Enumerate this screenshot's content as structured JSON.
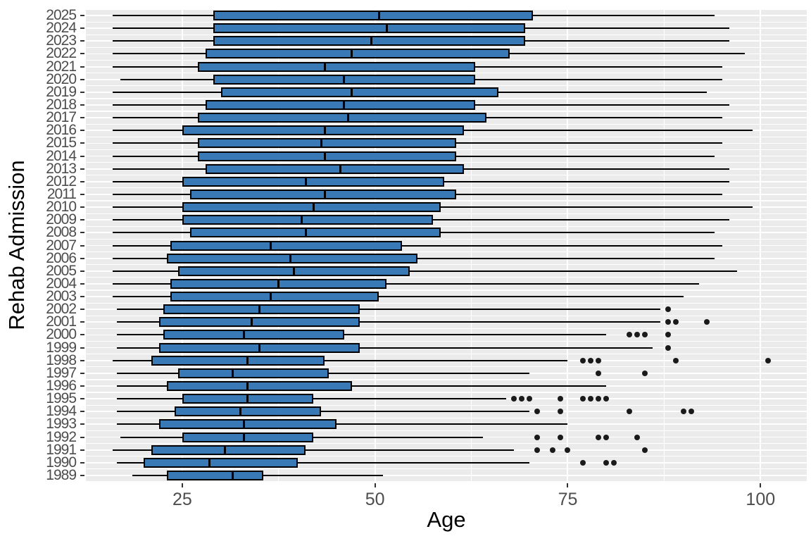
{
  "figure": {
    "x_axis": {
      "label": "Age",
      "tick_labels": [
        "25",
        "50",
        "75",
        "100"
      ]
    },
    "y_axis": {
      "label": "Rehab Admission"
    },
    "colors": {
      "box_fill": "#3879B6",
      "box_stroke": "#000000",
      "panel_background": "#EBEBEB",
      "gridline": "#FFFFFF",
      "tick_text": "#4D4D4D",
      "title_text": "#000000",
      "outlier": "#1A1A1A"
    }
  },
  "chart_data": {
    "type": "boxplot",
    "orientation": "horizontal",
    "title": "",
    "xlabel": "Age",
    "ylabel": "Rehab Admission",
    "xlim": [
      12.5,
      106
    ],
    "x_ticks": [
      25,
      50,
      75,
      100
    ],
    "x_minor_ticks": [
      37.5,
      62.5,
      87.5
    ],
    "grid": true,
    "categories": [
      2025,
      2024,
      2023,
      2022,
      2021,
      2020,
      2019,
      2018,
      2017,
      2016,
      2015,
      2014,
      2013,
      2012,
      2011,
      2010,
      2009,
      2008,
      2007,
      2006,
      2005,
      2004,
      2003,
      2002,
      2001,
      2000,
      1999,
      1998,
      1997,
      1996,
      1995,
      1994,
      1993,
      1992,
      1991,
      1990,
      1989
    ],
    "series": [
      {
        "year": 2025,
        "min": 16,
        "q1": 29,
        "median": 50.5,
        "q3": 70.5,
        "max": 94,
        "outliers": []
      },
      {
        "year": 2024,
        "min": 16,
        "q1": 29,
        "median": 51.5,
        "q3": 69.5,
        "max": 96,
        "outliers": []
      },
      {
        "year": 2023,
        "min": 16,
        "q1": 29,
        "median": 49.5,
        "q3": 69.5,
        "max": 96,
        "outliers": []
      },
      {
        "year": 2022,
        "min": 16,
        "q1": 28,
        "median": 47,
        "q3": 67.5,
        "max": 98,
        "outliers": []
      },
      {
        "year": 2021,
        "min": 16,
        "q1": 27,
        "median": 43.5,
        "q3": 63,
        "max": 95,
        "outliers": []
      },
      {
        "year": 2020,
        "min": 17,
        "q1": 29,
        "median": 46,
        "q3": 63,
        "max": 95,
        "outliers": []
      },
      {
        "year": 2019,
        "min": 16,
        "q1": 30,
        "median": 47,
        "q3": 66,
        "max": 93,
        "outliers": []
      },
      {
        "year": 2018,
        "min": 16,
        "q1": 28,
        "median": 46,
        "q3": 63,
        "max": 96,
        "outliers": []
      },
      {
        "year": 2017,
        "min": 16,
        "q1": 27,
        "median": 46.5,
        "q3": 64.5,
        "max": 95,
        "outliers": []
      },
      {
        "year": 2016,
        "min": 16,
        "q1": 25,
        "median": 43.5,
        "q3": 61.5,
        "max": 99,
        "outliers": []
      },
      {
        "year": 2015,
        "min": 16,
        "q1": 27,
        "median": 43,
        "q3": 60.5,
        "max": 95,
        "outliers": []
      },
      {
        "year": 2014,
        "min": 16,
        "q1": 27,
        "median": 43.5,
        "q3": 60.5,
        "max": 94,
        "outliers": []
      },
      {
        "year": 2013,
        "min": 16,
        "q1": 28,
        "median": 45.5,
        "q3": 61.5,
        "max": 96,
        "outliers": []
      },
      {
        "year": 2012,
        "min": 16,
        "q1": 25,
        "median": 41,
        "q3": 59,
        "max": 96,
        "outliers": []
      },
      {
        "year": 2011,
        "min": 16,
        "q1": 26,
        "median": 43.5,
        "q3": 60.5,
        "max": 95,
        "outliers": []
      },
      {
        "year": 2010,
        "min": 16,
        "q1": 25,
        "median": 42,
        "q3": 58.5,
        "max": 99,
        "outliers": []
      },
      {
        "year": 2009,
        "min": 16,
        "q1": 25,
        "median": 40.5,
        "q3": 57.5,
        "max": 96,
        "outliers": []
      },
      {
        "year": 2008,
        "min": 16,
        "q1": 26,
        "median": 41,
        "q3": 58.5,
        "max": 94,
        "outliers": []
      },
      {
        "year": 2007,
        "min": 16,
        "q1": 23.5,
        "median": 36.5,
        "q3": 53.5,
        "max": 95,
        "outliers": []
      },
      {
        "year": 2006,
        "min": 16,
        "q1": 23,
        "median": 39,
        "q3": 55.5,
        "max": 94,
        "outliers": []
      },
      {
        "year": 2005,
        "min": 16,
        "q1": 24.5,
        "median": 39.5,
        "q3": 54.5,
        "max": 97,
        "outliers": []
      },
      {
        "year": 2004,
        "min": 16,
        "q1": 23.5,
        "median": 37.5,
        "q3": 51.5,
        "max": 92,
        "outliers": []
      },
      {
        "year": 2003,
        "min": 16,
        "q1": 23.5,
        "median": 36.5,
        "q3": 50.5,
        "max": 90,
        "outliers": []
      },
      {
        "year": 2002,
        "min": 16.5,
        "q1": 22.5,
        "median": 35,
        "q3": 48,
        "max": 87,
        "outliers": [
          88
        ]
      },
      {
        "year": 2001,
        "min": 16.5,
        "q1": 22,
        "median": 34,
        "q3": 48,
        "max": 87,
        "outliers": [
          88,
          89,
          93
        ]
      },
      {
        "year": 2000,
        "min": 16.5,
        "q1": 22.5,
        "median": 33,
        "q3": 46,
        "max": 80,
        "outliers": [
          83,
          84,
          85,
          88
        ]
      },
      {
        "year": 1999,
        "min": 16.5,
        "q1": 22,
        "median": 35,
        "q3": 48,
        "max": 86,
        "outliers": [
          88
        ]
      },
      {
        "year": 1998,
        "min": 16,
        "q1": 21,
        "median": 33.5,
        "q3": 43.5,
        "max": 75,
        "outliers": [
          77,
          78,
          79,
          89,
          101
        ]
      },
      {
        "year": 1997,
        "min": 16.5,
        "q1": 24.5,
        "median": 31.5,
        "q3": 44,
        "max": 70,
        "outliers": [
          79,
          85
        ]
      },
      {
        "year": 1996,
        "min": 16.5,
        "q1": 23,
        "median": 33.5,
        "q3": 47,
        "max": 80,
        "outliers": []
      },
      {
        "year": 1995,
        "min": 16.5,
        "q1": 25,
        "median": 33.5,
        "q3": 42,
        "max": 67,
        "outliers": [
          68,
          69,
          70,
          74,
          77,
          78,
          79,
          80
        ]
      },
      {
        "year": 1994,
        "min": 16.5,
        "q1": 24,
        "median": 32.5,
        "q3": 43,
        "max": 70,
        "outliers": [
          71,
          74,
          83,
          90,
          91
        ]
      },
      {
        "year": 1993,
        "min": 16.5,
        "q1": 22,
        "median": 33,
        "q3": 45,
        "max": 75,
        "outliers": []
      },
      {
        "year": 1992,
        "min": 17,
        "q1": 25,
        "median": 33,
        "q3": 42,
        "max": 64,
        "outliers": [
          71,
          74,
          79,
          80,
          84
        ]
      },
      {
        "year": 1991,
        "min": 16,
        "q1": 21,
        "median": 30.5,
        "q3": 41,
        "max": 68,
        "outliers": [
          71,
          73,
          75,
          85
        ]
      },
      {
        "year": 1990,
        "min": 16.5,
        "q1": 20,
        "median": 28.5,
        "q3": 40,
        "max": 70,
        "outliers": [
          77,
          80,
          81
        ]
      },
      {
        "year": 1989,
        "min": 18.5,
        "q1": 23,
        "median": 31.5,
        "q3": 35.5,
        "max": 51,
        "outliers": []
      }
    ]
  }
}
